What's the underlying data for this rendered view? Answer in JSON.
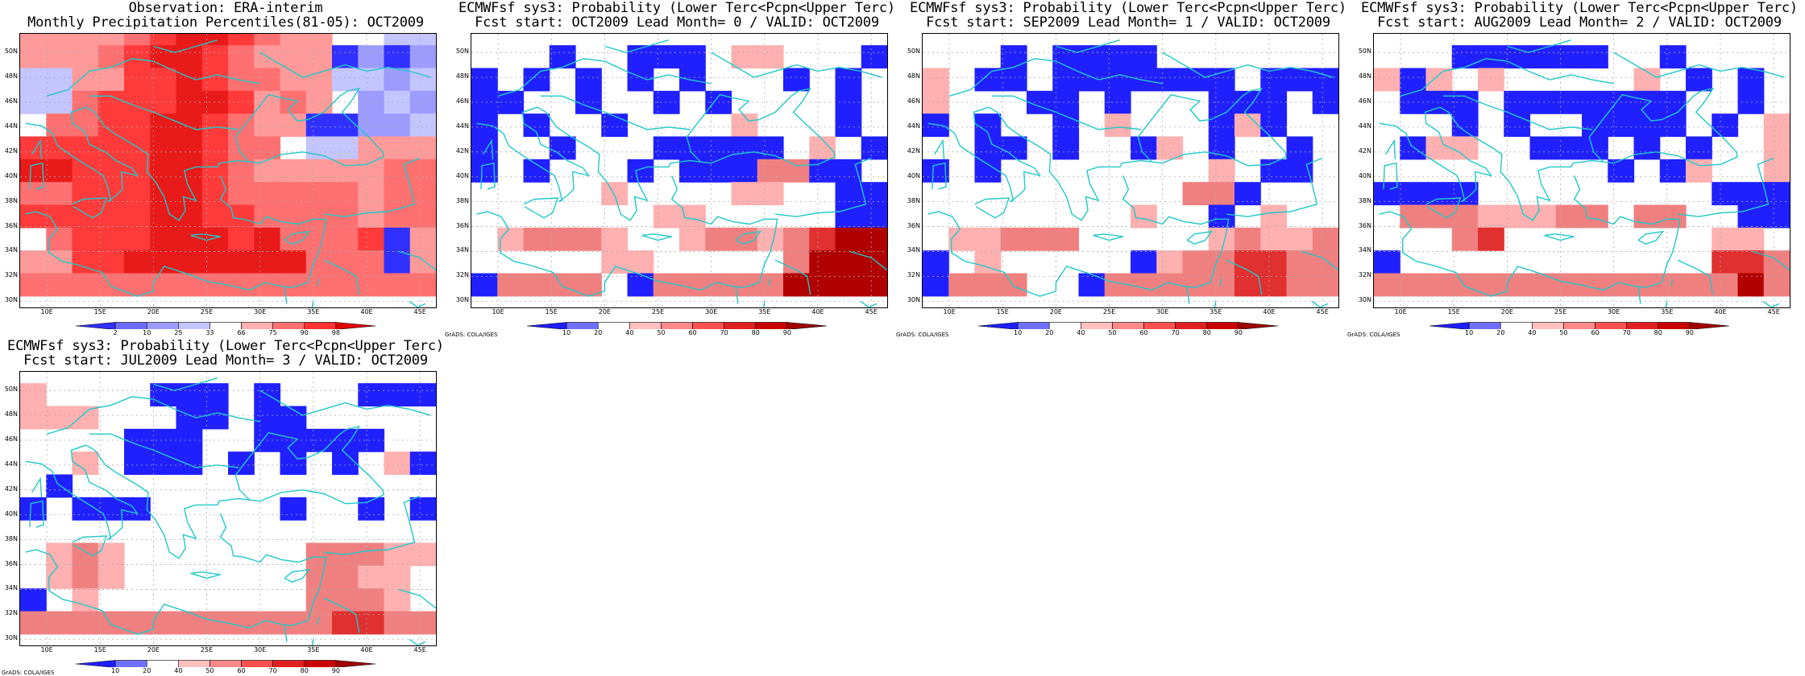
{
  "panels": [
    {
      "title_line1": "Observation: ERA-interim",
      "title_line2": "Monthly Precipitation Percentiles(81-05): OCT2009",
      "footer": "",
      "colorbar": {
        "ticks": [
          "2",
          "10",
          "25",
          "33",
          "66",
          "75",
          "90",
          "98"
        ],
        "colors": [
          "#3030ff",
          "#6c6cff",
          "#9c9cff",
          "#c4c4ff",
          "#ffffff",
          "#ffb0b0",
          "#ff7070",
          "#ff3030",
          "#e00000"
        ]
      },
      "grid_ids": [
        "o"
      ]
    },
    {
      "title_line1": "ECMWFsf sys3: Probability (Lower Terc<Pcpn<Upper Terc)",
      "title_line2": "Fcst start: OCT2009   Lead Month= 0 / VALID: OCT2009",
      "footer": "GrADS: COLA/IGES",
      "colorbar": {
        "ticks": [
          "10",
          "20",
          "40",
          "50",
          "60",
          "70",
          "80",
          "90"
        ],
        "colors": [
          "#1e1eff",
          "#7070ff",
          "#ffffff",
          "#ffc0c0",
          "#ff8888",
          "#ff5050",
          "#e02020",
          "#c80000",
          "#a00000"
        ]
      }
    },
    {
      "title_line1": "ECMWFsf sys3: Probability (Lower Terc<Pcpn<Upper Terc)",
      "title_line2": "Fcst start: SEP2009   Lead Month= 1 / VALID: OCT2009",
      "footer": "GrADS: COLA/IGES",
      "colorbar": {
        "ticks": [
          "10",
          "20",
          "40",
          "50",
          "60",
          "70",
          "80",
          "90"
        ],
        "colors": [
          "#1e1eff",
          "#7070ff",
          "#ffffff",
          "#ffc0c0",
          "#ff8888",
          "#ff5050",
          "#e02020",
          "#c80000",
          "#a00000"
        ]
      }
    },
    {
      "title_line1": "ECMWFsf sys3: Probability (Lower Terc<Pcpn<Upper Terc)",
      "title_line2": "Fcst start: AUG2009   Lead Month= 2 / VALID: OCT2009",
      "footer": "GrADS: COLA/IGES",
      "colorbar": {
        "ticks": [
          "10",
          "20",
          "40",
          "50",
          "60",
          "70",
          "80",
          "90"
        ],
        "colors": [
          "#1e1eff",
          "#7070ff",
          "#ffffff",
          "#ffc0c0",
          "#ff8888",
          "#ff5050",
          "#e02020",
          "#c80000",
          "#a00000"
        ]
      }
    },
    {
      "title_line1": "ECMWFsf sys3: Probability (Lower Terc<Pcpn<Upper Terc)",
      "title_line2": "Fcst start: JUL2009   Lead Month= 3 / VALID: OCT2009",
      "footer": "GrADS: COLA/IGES",
      "colorbar": {
        "ticks": [
          "10",
          "20",
          "40",
          "50",
          "60",
          "70",
          "80",
          "90"
        ],
        "colors": [
          "#1e1eff",
          "#7070ff",
          "#ffffff",
          "#ffc0c0",
          "#ff8888",
          "#ff5050",
          "#e02020",
          "#c80000",
          "#a00000"
        ]
      }
    }
  ],
  "axes": {
    "lat_labels": [
      "50N",
      "48N",
      "46N",
      "44N",
      "42N",
      "40N",
      "38N",
      "36N",
      "34N",
      "32N",
      "30N"
    ],
    "lon_labels": [
      "10E",
      "15E",
      "20E",
      "25E",
      "30E",
      "35E",
      "40E",
      "45E"
    ],
    "lon_range": [
      7.5,
      46.5
    ],
    "lat_range": [
      29.5,
      51.5
    ]
  },
  "grids": [
    [
      "5555678876554433",
      "5556788765551212",
      "3355778766553323",
      "3367778875654232",
      "4667788765511223",
      "7777788766433555",
      "8877788765555566",
      "6677788766666566",
      "7777788776666566",
      "4677788878666715",
      "5577888888866615",
      "6666666666666666"
    ],
    [
      "4444444444444444",
      "4440440004554440",
      "0404040404440404",
      "0044044040444404",
      "0404404444544404",
      "0440444000004540",
      "0404440400066001",
      "4444454444554400",
      "4444444554444400",
      "4566654456656788",
      "4444455444446888",
      "0666640666668888"
    ],
    [
      "4444444444444444",
      "4440400004444444",
      "5400400000004000",
      "5444004044400040",
      "0404404544405044",
      "4400404405404404",
      "0404444444454004",
      "4444444444660444",
      "4444444454404544",
      "4556664444456556",
      "0454444405667766",
      "0666440666667766"
    ],
    [
      "4444444444444444",
      "4440000004404444",
      "5054544444540404",
      "4000400000004404",
      "4440404400004045",
      "4055440004040445",
      "4444444440405445",
      "0000444444444000",
      "4666555664664400",
      "4446744444444554",
      "0444444444444776",
      "6666666666666686"
    ],
    [
      "4444444444444444",
      "5444400040444000",
      "5554440040044444",
      "4444000440000044",
      "4454000404040450",
      "4044444444444444",
      "0400044444044040",
      "4444444444444444",
      "4565444444466655",
      "4565444444466554",
      "0454444444466654",
      "6666666666667766"
    ]
  ],
  "grid_legend": {
    "obs": {
      "1": "#3030ff",
      "2": "#9c9cff",
      "3": "#c4c4ff",
      "4": "#ffffff",
      "5": "#ff9a9a",
      "6": "#ff7070",
      "7": "#ff3a3a",
      "8": "#e81a1a"
    },
    "fcst": {
      "0": "#2020ff",
      "4": "#ffffff",
      "5": "#ffb0b0",
      "6": "#f08080",
      "7": "#e03030",
      "8": "#b00000"
    }
  },
  "coast_color": "#20c8c8",
  "grid_line_color": "#aaaaaa"
}
